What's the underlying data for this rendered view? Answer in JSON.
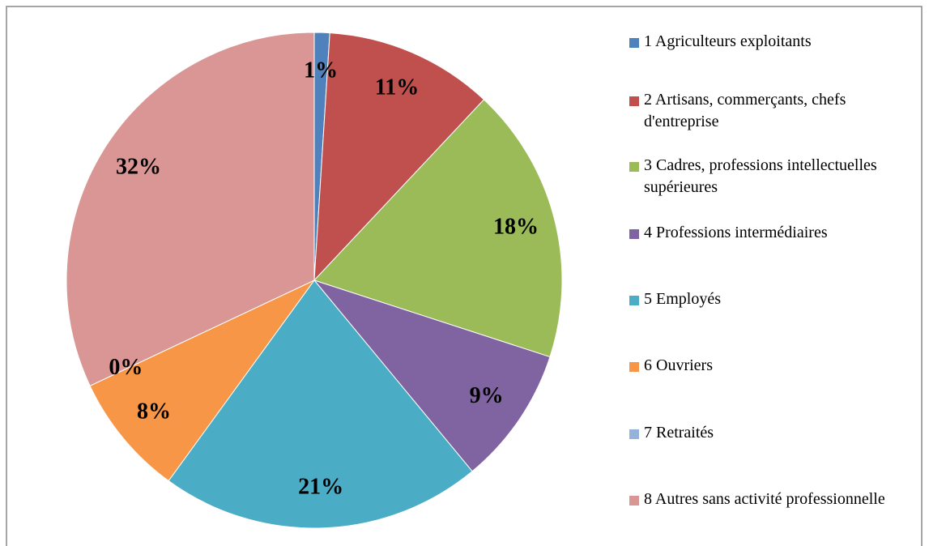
{
  "chart_data": {
    "type": "pie",
    "categories": [
      "1 Agriculteurs exploitants",
      "2 Artisans, commerçants, chefs d'entreprise",
      "3 Cadres, professions intellectuelles supérieures",
      "4 Professions intermédiaires",
      "5 Employés",
      "6 Ouvriers",
      "7 Retraités",
      "8 Autres sans activité professionnelle"
    ],
    "values": [
      1,
      11,
      18,
      9,
      21,
      8,
      0,
      32
    ],
    "value_labels": [
      "1%",
      "11%",
      "18%",
      "9%",
      "21%",
      "8%",
      "0%",
      "32%"
    ],
    "colors": [
      "#4f81bd",
      "#c0504d",
      "#9bbb59",
      "#8064a2",
      "#4bacc6",
      "#f79646",
      "#95b3d7",
      "#d99694"
    ],
    "legend": "right"
  }
}
